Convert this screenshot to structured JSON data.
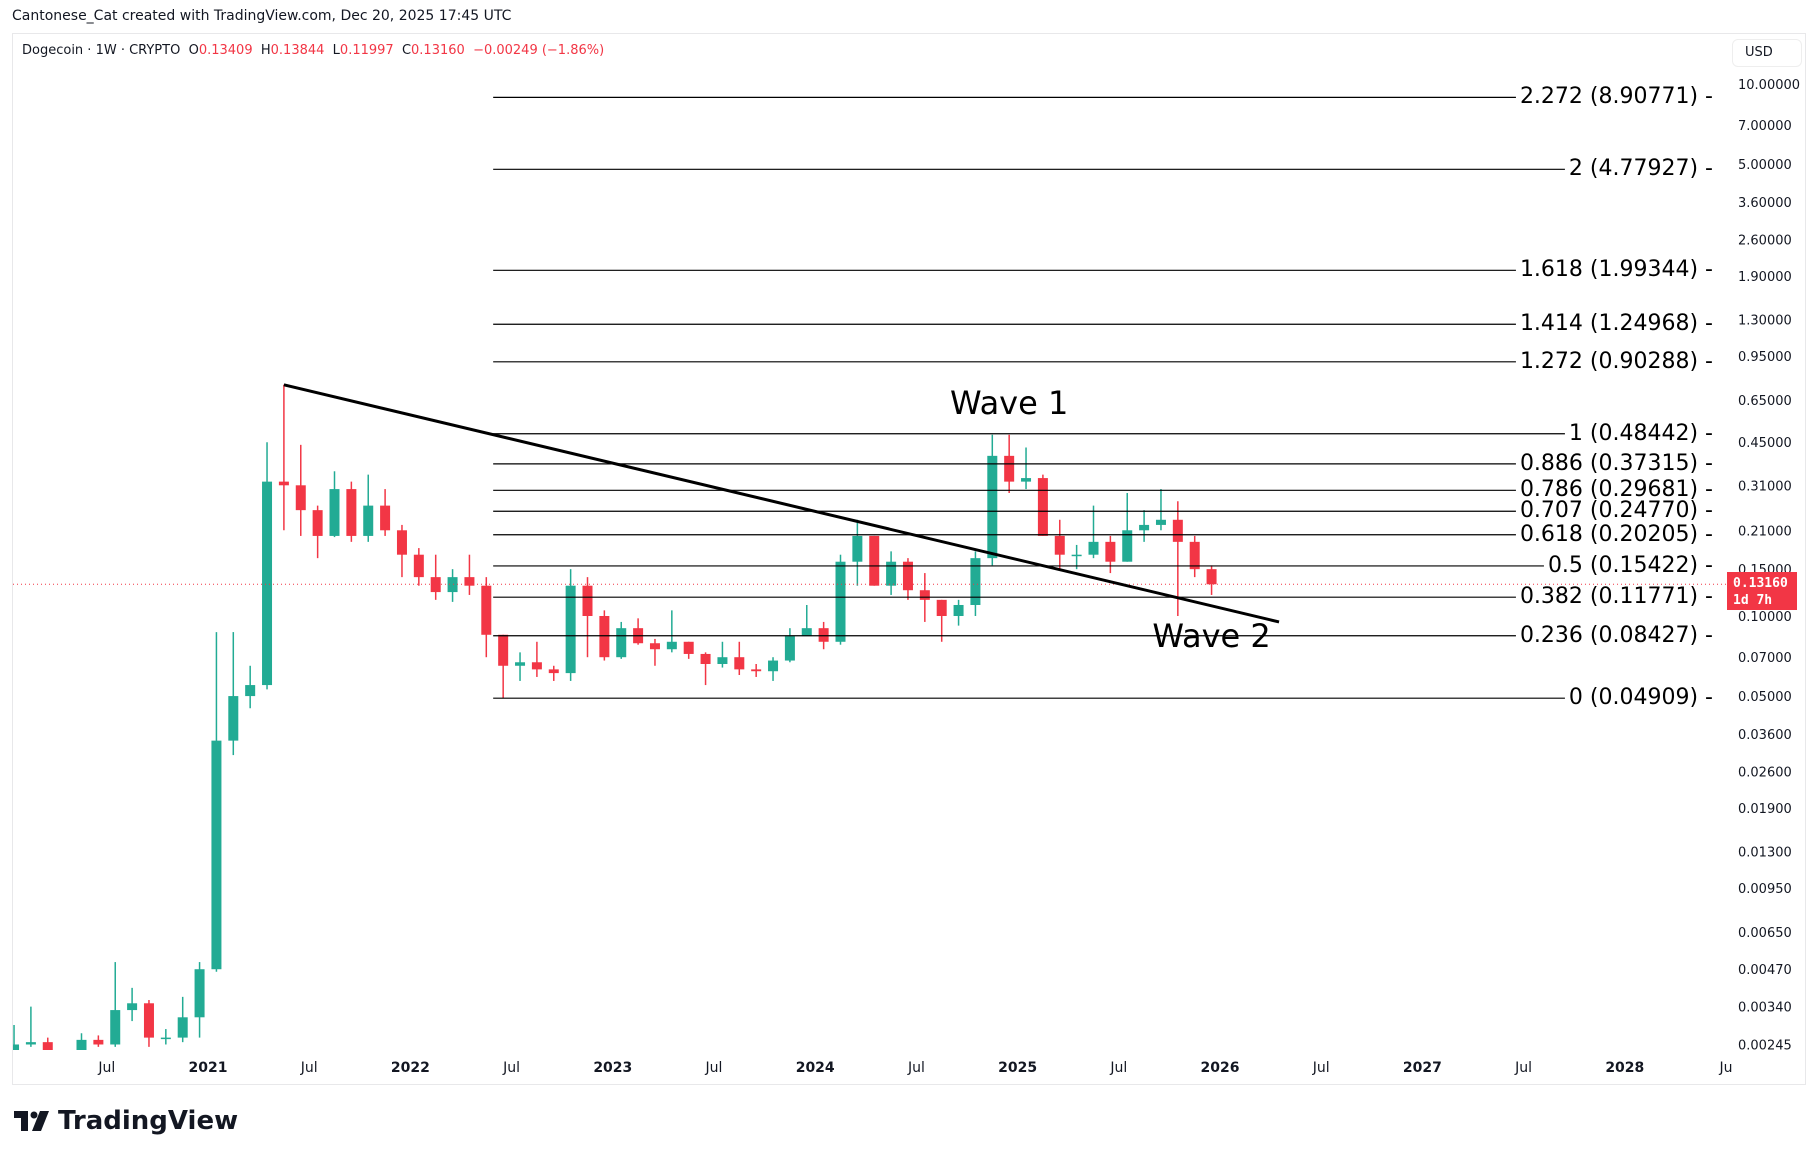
{
  "credit": "Cantonese_Cat created with TradingView.com, Dec 20, 2025 17:45 UTC",
  "legend": {
    "symbol": "Dogecoin · 1W · CRYPTO",
    "open_label": "O",
    "open": "0.13409",
    "high_label": "H",
    "high": "0.13844",
    "low_label": "L",
    "low": "0.11997",
    "close_label": "C",
    "close": "0.13160",
    "change": "−0.00249 (−1.86%)"
  },
  "currency_button": "USD",
  "current_price": {
    "value": "0.13160",
    "countdown": "1d 7h"
  },
  "logo_text": "TradingView",
  "colors": {
    "up": "#22ab94",
    "down": "#f23645",
    "line": "#000000",
    "price_line": "#f23645"
  },
  "chart_data": {
    "type": "candlestick",
    "yscale": "log",
    "ylim": [
      0.00245,
      10
    ],
    "xlim": [
      "2020-01",
      "2028-06"
    ],
    "price_ticks": [
      "10.00000",
      "7.00000",
      "5.00000",
      "3.60000",
      "2.60000",
      "1.90000",
      "1.30000",
      "0.95000",
      "0.65000",
      "0.45000",
      "0.31000",
      "0.21000",
      "0.15000",
      "0.10000",
      "0.07000",
      "0.05000",
      "0.03600",
      "0.02600",
      "0.01900",
      "0.01300",
      "0.00950",
      "0.00650",
      "0.00470",
      "0.00340",
      "0.00245"
    ],
    "time_ticks": [
      {
        "label": "Jul",
        "t": 2020.5,
        "year": false
      },
      {
        "label": "2021",
        "t": 2021,
        "year": true
      },
      {
        "label": "Jul",
        "t": 2021.5,
        "year": false
      },
      {
        "label": "2022",
        "t": 2022,
        "year": true
      },
      {
        "label": "Jul",
        "t": 2022.5,
        "year": false
      },
      {
        "label": "2023",
        "t": 2023,
        "year": true
      },
      {
        "label": "Jul",
        "t": 2023.5,
        "year": false
      },
      {
        "label": "2024",
        "t": 2024,
        "year": true
      },
      {
        "label": "Jul",
        "t": 2024.5,
        "year": false
      },
      {
        "label": "2025",
        "t": 2025,
        "year": true
      },
      {
        "label": "Jul",
        "t": 2025.5,
        "year": false
      },
      {
        "label": "2026",
        "t": 2026,
        "year": true
      },
      {
        "label": "Jul",
        "t": 2026.5,
        "year": false
      },
      {
        "label": "2027",
        "t": 2027,
        "year": true
      },
      {
        "label": "Jul",
        "t": 2027.5,
        "year": false
      },
      {
        "label": "2028",
        "t": 2028,
        "year": true
      },
      {
        "label": "Ju",
        "t": 2028.5,
        "year": false
      }
    ],
    "candles_monthly_ohlc": [
      [
        "2020-01",
        0.00202,
        0.0029,
        0.002,
        0.00245
      ],
      [
        "2020-02",
        0.00245,
        0.0034,
        0.0024,
        0.0025
      ],
      [
        "2020-03",
        0.0025,
        0.0026,
        0.0014,
        0.0019
      ],
      [
        "2020-04",
        0.0019,
        0.0021,
        0.0018,
        0.002
      ],
      [
        "2020-05",
        0.002,
        0.0027,
        0.00195,
        0.00255
      ],
      [
        "2020-06",
        0.00255,
        0.00265,
        0.0024,
        0.00245
      ],
      [
        "2020-07",
        0.00245,
        0.005,
        0.0024,
        0.0033
      ],
      [
        "2020-08",
        0.0033,
        0.004,
        0.003,
        0.0035
      ],
      [
        "2020-09",
        0.0035,
        0.0036,
        0.0024,
        0.0026
      ],
      [
        "2020-10",
        0.0026,
        0.0028,
        0.00245,
        0.0026
      ],
      [
        "2020-11",
        0.0026,
        0.0037,
        0.0025,
        0.0031
      ],
      [
        "2020-12",
        0.0031,
        0.005,
        0.0026,
        0.0047
      ],
      [
        "2021-01",
        0.0047,
        0.087,
        0.0046,
        0.034
      ],
      [
        "2021-02",
        0.034,
        0.087,
        0.03,
        0.05
      ],
      [
        "2021-03",
        0.05,
        0.065,
        0.045,
        0.055
      ],
      [
        "2021-04",
        0.055,
        0.45,
        0.053,
        0.32
      ],
      [
        "2021-05",
        0.32,
        0.74,
        0.21,
        0.31
      ],
      [
        "2021-06",
        0.31,
        0.44,
        0.2,
        0.25
      ],
      [
        "2021-07",
        0.25,
        0.26,
        0.165,
        0.2
      ],
      [
        "2021-08",
        0.2,
        0.35,
        0.198,
        0.3
      ],
      [
        "2021-09",
        0.3,
        0.32,
        0.19,
        0.2
      ],
      [
        "2021-10",
        0.2,
        0.34,
        0.19,
        0.26
      ],
      [
        "2021-11",
        0.26,
        0.3,
        0.2,
        0.21
      ],
      [
        "2021-12",
        0.21,
        0.22,
        0.14,
        0.17
      ],
      [
        "2022-01",
        0.17,
        0.18,
        0.13,
        0.14
      ],
      [
        "2022-02",
        0.14,
        0.17,
        0.115,
        0.123
      ],
      [
        "2022-03",
        0.123,
        0.15,
        0.113,
        0.14
      ],
      [
        "2022-04",
        0.14,
        0.17,
        0.12,
        0.13
      ],
      [
        "2022-05",
        0.13,
        0.14,
        0.07,
        0.085
      ],
      [
        "2022-06",
        0.085,
        0.085,
        0.049,
        0.065
      ],
      [
        "2022-07",
        0.065,
        0.073,
        0.057,
        0.067
      ],
      [
        "2022-08",
        0.067,
        0.08,
        0.059,
        0.063
      ],
      [
        "2022-09",
        0.063,
        0.065,
        0.057,
        0.061
      ],
      [
        "2022-10",
        0.061,
        0.15,
        0.057,
        0.13
      ],
      [
        "2022-11",
        0.13,
        0.14,
        0.07,
        0.1
      ],
      [
        "2022-12",
        0.1,
        0.105,
        0.068,
        0.07
      ],
      [
        "2023-01",
        0.07,
        0.095,
        0.069,
        0.09
      ],
      [
        "2023-02",
        0.09,
        0.098,
        0.078,
        0.079
      ],
      [
        "2023-03",
        0.079,
        0.082,
        0.065,
        0.075
      ],
      [
        "2023-04",
        0.075,
        0.105,
        0.073,
        0.08
      ],
      [
        "2023-05",
        0.08,
        0.08,
        0.069,
        0.072
      ],
      [
        "2023-06",
        0.072,
        0.073,
        0.055,
        0.066
      ],
      [
        "2023-07",
        0.066,
        0.08,
        0.064,
        0.07
      ],
      [
        "2023-08",
        0.07,
        0.08,
        0.06,
        0.063
      ],
      [
        "2023-09",
        0.063,
        0.066,
        0.059,
        0.062
      ],
      [
        "2023-10",
        0.062,
        0.07,
        0.057,
        0.068
      ],
      [
        "2023-11",
        0.068,
        0.09,
        0.067,
        0.084
      ],
      [
        "2023-12",
        0.084,
        0.11,
        0.085,
        0.09
      ],
      [
        "2024-01",
        0.09,
        0.095,
        0.075,
        0.08
      ],
      [
        "2024-02",
        0.08,
        0.17,
        0.078,
        0.16
      ],
      [
        "2024-03",
        0.16,
        0.23,
        0.13,
        0.2
      ],
      [
        "2024-04",
        0.2,
        0.2,
        0.13,
        0.13
      ],
      [
        "2024-05",
        0.13,
        0.175,
        0.12,
        0.16
      ],
      [
        "2024-06",
        0.16,
        0.165,
        0.115,
        0.125
      ],
      [
        "2024-07",
        0.125,
        0.145,
        0.095,
        0.115
      ],
      [
        "2024-08",
        0.115,
        0.115,
        0.08,
        0.1
      ],
      [
        "2024-09",
        0.1,
        0.115,
        0.092,
        0.11
      ],
      [
        "2024-10",
        0.11,
        0.175,
        0.1,
        0.165
      ],
      [
        "2024-11",
        0.165,
        0.48,
        0.155,
        0.4
      ],
      [
        "2024-12",
        0.4,
        0.48,
        0.29,
        0.32
      ],
      [
        "2025-01",
        0.32,
        0.43,
        0.3,
        0.33
      ],
      [
        "2025-02",
        0.33,
        0.34,
        0.2,
        0.2
      ],
      [
        "2025-03",
        0.2,
        0.23,
        0.15,
        0.17
      ],
      [
        "2025-04",
        0.17,
        0.185,
        0.15,
        0.17
      ],
      [
        "2025-05",
        0.17,
        0.26,
        0.165,
        0.19
      ],
      [
        "2025-06",
        0.19,
        0.2,
        0.145,
        0.16
      ],
      [
        "2025-07",
        0.16,
        0.29,
        0.16,
        0.21
      ],
      [
        "2025-08",
        0.21,
        0.25,
        0.19,
        0.22
      ],
      [
        "2025-09",
        0.22,
        0.3,
        0.21,
        0.23
      ],
      [
        "2025-10",
        0.23,
        0.27,
        0.1,
        0.19
      ],
      [
        "2025-11",
        0.19,
        0.2,
        0.14,
        0.15
      ],
      [
        "2025-12",
        0.15,
        0.155,
        0.12,
        0.1316
      ]
    ],
    "fib_levels": [
      {
        "label": "2.272 (8.90771)",
        "price": 8.90771
      },
      {
        "label": "2 (4.77927)",
        "price": 4.77927
      },
      {
        "label": "1.618 (1.99344)",
        "price": 1.99344
      },
      {
        "label": "1.414 (1.24968)",
        "price": 1.24968
      },
      {
        "label": "1.272 (0.90288)",
        "price": 0.90288
      },
      {
        "label": "1 (0.48442)",
        "price": 0.48442
      },
      {
        "label": "0.886 (0.37315)",
        "price": 0.37315
      },
      {
        "label": "0.786 (0.29681)",
        "price": 0.29681
      },
      {
        "label": "0.707 (0.24770)",
        "price": 0.2477
      },
      {
        "label": "0.618 (0.20205)",
        "price": 0.20205
      },
      {
        "label": "0.5 (0.15422)",
        "price": 0.15422
      },
      {
        "label": "0.382 (0.11771)",
        "price": 0.11771
      },
      {
        "label": "0.236 (0.08427)",
        "price": 0.08427
      },
      {
        "label": "0 (0.04909)",
        "price": 0.04909
      }
    ],
    "fib_range": {
      "start": "2022-06",
      "end": "2027-11"
    },
    "trendline": [
      {
        "t": "2021-05",
        "price": 0.74
      },
      {
        "t": "2026-04",
        "price": 0.095
      }
    ],
    "annotations": [
      {
        "text": "Wave 1",
        "t": "2024-12",
        "price": 0.63
      },
      {
        "text": "Wave 2",
        "t": "2025-12",
        "price": 0.084
      }
    ],
    "current_price": 0.1316
  }
}
